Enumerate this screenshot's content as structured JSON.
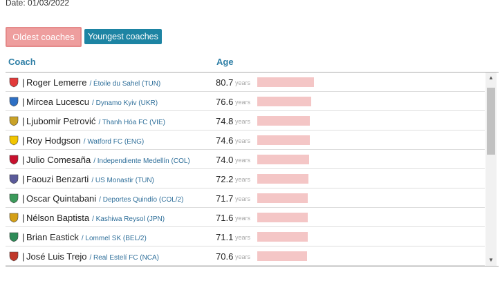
{
  "date_label": "Date: 01/03/2022",
  "buttons": {
    "oldest": "Oldest coaches",
    "youngest": "Youngest coaches"
  },
  "columns": {
    "coach": "Coach",
    "age": "Age"
  },
  "years_unit": "years",
  "colors": {
    "active_button": "#ee9e9e",
    "inactive_button": "#1d84a3",
    "header_text": "#2f7fa6",
    "bar": "#f4c6c6"
  },
  "rows": [
    {
      "name": "Roger Lemerre",
      "club": "/ Étoile du Sahel (TUN)",
      "age": "80.7",
      "age_value": 80.7,
      "crest": "etoile-du-sahel-crest"
    },
    {
      "name": "Mircea Lucescu",
      "club": "/ Dynamo Kyiv (UKR)",
      "age": "76.6",
      "age_value": 76.6,
      "crest": "dynamo-kyiv-crest"
    },
    {
      "name": "Ljubomir Petrović",
      "club": "/ Thanh Hóa FC (VIE)",
      "age": "74.8",
      "age_value": 74.8,
      "crest": "thanh-hoa-crest"
    },
    {
      "name": "Roy Hodgson",
      "club": "/ Watford FC (ENG)",
      "age": "74.6",
      "age_value": 74.6,
      "crest": "watford-crest"
    },
    {
      "name": "Julio Comesaña",
      "club": "/ Independiente Medellín (COL)",
      "age": "74.0",
      "age_value": 74.0,
      "crest": "independiente-medellin-crest"
    },
    {
      "name": "Faouzi Benzarti",
      "club": "/ US Monastir (TUN)",
      "age": "72.2",
      "age_value": 72.2,
      "crest": "us-monastir-crest"
    },
    {
      "name": "Oscar Quintabani",
      "club": "/ Deportes Quindío (COL/2)",
      "age": "71.7",
      "age_value": 71.7,
      "crest": "deportes-quindio-crest"
    },
    {
      "name": "Nélson Baptista",
      "club": "/ Kashiwa Reysol (JPN)",
      "age": "71.6",
      "age_value": 71.6,
      "crest": "kashiwa-reysol-crest"
    },
    {
      "name": "Brian Eastick",
      "club": "/ Lommel SK (BEL/2)",
      "age": "71.1",
      "age_value": 71.1,
      "crest": "lommel-crest"
    },
    {
      "name": "José Luis Trejo",
      "club": "/ Real Estelí FC (NCA)",
      "age": "70.6",
      "age_value": 70.6,
      "crest": "real-esteli-crest"
    }
  ]
}
